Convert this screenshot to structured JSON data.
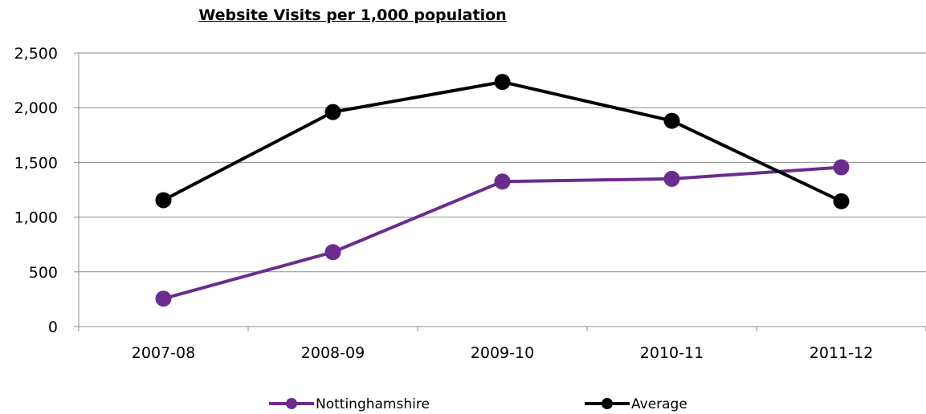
{
  "chart_data": {
    "type": "line",
    "title": "Website Visits per 1,000 population",
    "xlabel": "",
    "ylabel": "",
    "categories": [
      "2007-08",
      "2008-09",
      "2009-10",
      "2010-11",
      "2011-12"
    ],
    "ylim": [
      0,
      2500
    ],
    "yticks": [
      0,
      500,
      1000,
      1500,
      2000,
      2500
    ],
    "ytick_labels": [
      "0",
      "500",
      "1,000",
      "1,500",
      "2,000",
      "2,500"
    ],
    "grid": true,
    "legend_position": "bottom",
    "series": [
      {
        "name": "Nottinghamshire",
        "color": "#6a2c8e",
        "values": [
          255,
          680,
          1325,
          1350,
          1455
        ]
      },
      {
        "name": "Average",
        "color": "#000000",
        "values": [
          1155,
          1960,
          2235,
          1880,
          1145
        ]
      }
    ]
  }
}
